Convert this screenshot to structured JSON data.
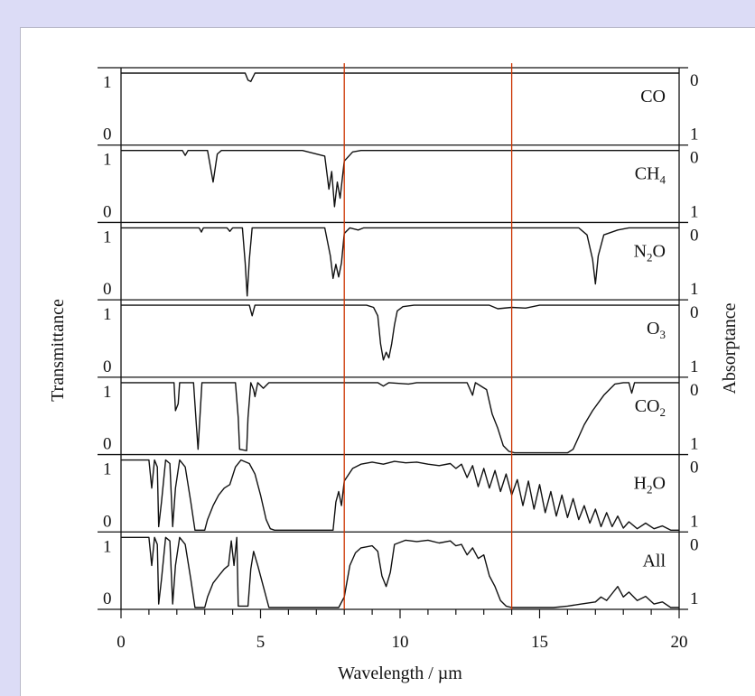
{
  "chart_data": {
    "type": "line",
    "title": "",
    "xlabel": "Wavelength / µm",
    "ylabel_left": "Transmittance",
    "ylabel_right": "Absorptance",
    "xlim": [
      0,
      20
    ],
    "x_ticks": [
      "0",
      "5",
      "10",
      "15",
      "20"
    ],
    "left_panel_ticks": [
      "1",
      "0"
    ],
    "right_panel_ticks": [
      "0",
      "1"
    ],
    "window_markers_um": [
      8,
      14
    ],
    "window_marker_color": "#cc3300",
    "series": [
      {
        "name": "CO",
        "label_main": "CO",
        "label_sub": "",
        "points": [
          [
            0,
            1
          ],
          [
            4.45,
            1
          ],
          [
            4.55,
            0.9
          ],
          [
            4.65,
            0.88
          ],
          [
            4.8,
            1
          ],
          [
            20,
            1
          ]
        ]
      },
      {
        "name": "CH4",
        "label_main": "CH",
        "label_sub": "4",
        "points": [
          [
            0,
            1
          ],
          [
            2.2,
            1
          ],
          [
            2.3,
            0.93
          ],
          [
            2.4,
            1
          ],
          [
            3.1,
            1
          ],
          [
            3.3,
            0.55
          ],
          [
            3.45,
            0.95
          ],
          [
            3.6,
            1
          ],
          [
            6.5,
            1
          ],
          [
            7.3,
            0.92
          ],
          [
            7.45,
            0.45
          ],
          [
            7.55,
            0.7
          ],
          [
            7.65,
            0.2
          ],
          [
            7.75,
            0.55
          ],
          [
            7.85,
            0.32
          ],
          [
            8.0,
            0.85
          ],
          [
            8.3,
            0.98
          ],
          [
            8.6,
            1
          ],
          [
            20,
            1
          ]
        ]
      },
      {
        "name": "N2O",
        "label_main": "N",
        "label_sub": "2",
        "label_tail": "O",
        "points": [
          [
            0,
            1
          ],
          [
            2.8,
            1
          ],
          [
            2.88,
            0.94
          ],
          [
            2.95,
            1
          ],
          [
            3.8,
            1
          ],
          [
            3.9,
            0.95
          ],
          [
            4.0,
            1
          ],
          [
            4.35,
            1
          ],
          [
            4.45,
            0.5
          ],
          [
            4.52,
            0.03
          ],
          [
            4.6,
            0.55
          ],
          [
            4.7,
            1
          ],
          [
            7.3,
            1
          ],
          [
            7.5,
            0.6
          ],
          [
            7.6,
            0.28
          ],
          [
            7.7,
            0.48
          ],
          [
            7.8,
            0.3
          ],
          [
            7.9,
            0.5
          ],
          [
            8.0,
            0.92
          ],
          [
            8.2,
            1
          ],
          [
            8.5,
            0.97
          ],
          [
            8.7,
            1
          ],
          [
            16.4,
            1
          ],
          [
            16.7,
            0.9
          ],
          [
            16.9,
            0.55
          ],
          [
            17.0,
            0.2
          ],
          [
            17.1,
            0.6
          ],
          [
            17.3,
            0.9
          ],
          [
            17.8,
            0.97
          ],
          [
            18.2,
            1
          ],
          [
            20,
            1
          ]
        ]
      },
      {
        "name": "O3",
        "label_main": "O",
        "label_sub": "3",
        "points": [
          [
            0,
            1
          ],
          [
            4.6,
            1
          ],
          [
            4.7,
            0.85
          ],
          [
            4.8,
            1
          ],
          [
            8.8,
            1
          ],
          [
            9.05,
            0.97
          ],
          [
            9.2,
            0.85
          ],
          [
            9.3,
            0.45
          ],
          [
            9.4,
            0.22
          ],
          [
            9.5,
            0.33
          ],
          [
            9.6,
            0.25
          ],
          [
            9.7,
            0.45
          ],
          [
            9.8,
            0.72
          ],
          [
            9.9,
            0.92
          ],
          [
            10.1,
            0.98
          ],
          [
            10.5,
            1
          ],
          [
            13.2,
            1
          ],
          [
            13.5,
            0.95
          ],
          [
            14,
            0.97
          ],
          [
            14.5,
            0.96
          ],
          [
            15,
            1
          ],
          [
            20,
            1
          ]
        ]
      },
      {
        "name": "CO2",
        "label_main": "CO",
        "label_sub": "2",
        "points": [
          [
            0,
            1
          ],
          [
            1.9,
            1
          ],
          [
            1.95,
            0.6
          ],
          [
            2.05,
            0.7
          ],
          [
            2.1,
            1
          ],
          [
            2.6,
            1
          ],
          [
            2.7,
            0.4
          ],
          [
            2.76,
            0.05
          ],
          [
            2.82,
            0.45
          ],
          [
            2.9,
            1
          ],
          [
            4.1,
            1
          ],
          [
            4.2,
            0.5
          ],
          [
            4.25,
            0.05
          ],
          [
            4.5,
            0.03
          ],
          [
            4.55,
            0.5
          ],
          [
            4.65,
            1
          ],
          [
            4.75,
            0.9
          ],
          [
            4.8,
            0.8
          ],
          [
            4.9,
            1
          ],
          [
            5.1,
            0.92
          ],
          [
            5.3,
            1
          ],
          [
            9.2,
            1
          ],
          [
            9.4,
            0.95
          ],
          [
            9.6,
            1
          ],
          [
            10.3,
            0.98
          ],
          [
            10.6,
            1
          ],
          [
            12.4,
            1
          ],
          [
            12.6,
            0.82
          ],
          [
            12.7,
            1
          ],
          [
            13.1,
            0.9
          ],
          [
            13.3,
            0.55
          ],
          [
            13.5,
            0.35
          ],
          [
            13.7,
            0.1
          ],
          [
            13.9,
            0.02
          ],
          [
            14.1,
            0
          ],
          [
            16,
            0
          ],
          [
            16.2,
            0.05
          ],
          [
            16.6,
            0.4
          ],
          [
            16.9,
            0.6
          ],
          [
            17.3,
            0.82
          ],
          [
            17.7,
            0.98
          ],
          [
            18.0,
            1
          ],
          [
            18.2,
            1
          ],
          [
            18.3,
            0.85
          ],
          [
            18.4,
            1
          ],
          [
            20,
            1
          ]
        ]
      },
      {
        "name": "H2O",
        "label_main": "H",
        "label_sub": "2",
        "label_tail": "O",
        "points": [
          [
            0,
            1
          ],
          [
            1.0,
            1
          ],
          [
            1.1,
            0.6
          ],
          [
            1.2,
            1
          ],
          [
            1.3,
            0.9
          ],
          [
            1.35,
            0.05
          ],
          [
            1.45,
            0.4
          ],
          [
            1.6,
            1
          ],
          [
            1.75,
            0.95
          ],
          [
            1.85,
            0.05
          ],
          [
            1.95,
            0.6
          ],
          [
            2.1,
            1
          ],
          [
            2.3,
            0.9
          ],
          [
            2.5,
            0.4
          ],
          [
            2.65,
            0
          ],
          [
            3.0,
            0
          ],
          [
            3.1,
            0.15
          ],
          [
            3.3,
            0.35
          ],
          [
            3.5,
            0.5
          ],
          [
            3.7,
            0.6
          ],
          [
            3.9,
            0.65
          ],
          [
            4.1,
            0.9
          ],
          [
            4.3,
            1
          ],
          [
            4.6,
            0.95
          ],
          [
            4.8,
            0.8
          ],
          [
            5.0,
            0.5
          ],
          [
            5.2,
            0.15
          ],
          [
            5.35,
            0.02
          ],
          [
            5.5,
            0
          ],
          [
            7.6,
            0
          ],
          [
            7.7,
            0.4
          ],
          [
            7.8,
            0.55
          ],
          [
            7.9,
            0.35
          ],
          [
            8.0,
            0.7
          ],
          [
            8.3,
            0.88
          ],
          [
            8.6,
            0.94
          ],
          [
            9,
            0.97
          ],
          [
            9.4,
            0.94
          ],
          [
            9.8,
            0.98
          ],
          [
            10.2,
            0.96
          ],
          [
            10.6,
            0.97
          ],
          [
            11,
            0.94
          ],
          [
            11.4,
            0.92
          ],
          [
            11.8,
            0.95
          ],
          [
            12.0,
            0.88
          ],
          [
            12.2,
            0.94
          ],
          [
            12.4,
            0.75
          ],
          [
            12.6,
            0.92
          ],
          [
            12.8,
            0.62
          ],
          [
            13.0,
            0.88
          ],
          [
            13.2,
            0.6
          ],
          [
            13.4,
            0.85
          ],
          [
            13.6,
            0.55
          ],
          [
            13.8,
            0.8
          ],
          [
            14.0,
            0.5
          ],
          [
            14.2,
            0.72
          ],
          [
            14.4,
            0.35
          ],
          [
            14.6,
            0.7
          ],
          [
            14.8,
            0.3
          ],
          [
            15.0,
            0.65
          ],
          [
            15.2,
            0.25
          ],
          [
            15.4,
            0.55
          ],
          [
            15.6,
            0.2
          ],
          [
            15.8,
            0.5
          ],
          [
            16.0,
            0.18
          ],
          [
            16.2,
            0.45
          ],
          [
            16.4,
            0.15
          ],
          [
            16.6,
            0.35
          ],
          [
            16.8,
            0.1
          ],
          [
            17.0,
            0.3
          ],
          [
            17.2,
            0.05
          ],
          [
            17.4,
            0.25
          ],
          [
            17.6,
            0.05
          ],
          [
            17.8,
            0.2
          ],
          [
            18.0,
            0.03
          ],
          [
            18.2,
            0.12
          ],
          [
            18.5,
            0.02
          ],
          [
            18.8,
            0.1
          ],
          [
            19.1,
            0.02
          ],
          [
            19.4,
            0.06
          ],
          [
            19.7,
            0
          ],
          [
            20,
            0
          ]
        ]
      },
      {
        "name": "All",
        "label_main": "All",
        "label_sub": "",
        "points": [
          [
            0,
            1
          ],
          [
            1.0,
            1
          ],
          [
            1.1,
            0.6
          ],
          [
            1.2,
            1
          ],
          [
            1.3,
            0.9
          ],
          [
            1.35,
            0.05
          ],
          [
            1.45,
            0.4
          ],
          [
            1.6,
            1
          ],
          [
            1.75,
            0.95
          ],
          [
            1.85,
            0.05
          ],
          [
            1.95,
            0.6
          ],
          [
            2.1,
            1
          ],
          [
            2.3,
            0.9
          ],
          [
            2.5,
            0.4
          ],
          [
            2.65,
            0
          ],
          [
            3.0,
            0
          ],
          [
            3.1,
            0.15
          ],
          [
            3.3,
            0.35
          ],
          [
            3.5,
            0.45
          ],
          [
            3.7,
            0.55
          ],
          [
            3.85,
            0.6
          ],
          [
            3.95,
            0.95
          ],
          [
            4.05,
            0.6
          ],
          [
            4.15,
            1
          ],
          [
            4.2,
            0.02
          ],
          [
            4.55,
            0.02
          ],
          [
            4.65,
            0.55
          ],
          [
            4.75,
            0.8
          ],
          [
            4.9,
            0.6
          ],
          [
            5.1,
            0.3
          ],
          [
            5.3,
            0
          ],
          [
            7.8,
            0
          ],
          [
            8.0,
            0.15
          ],
          [
            8.2,
            0.6
          ],
          [
            8.4,
            0.78
          ],
          [
            8.6,
            0.85
          ],
          [
            9.0,
            0.88
          ],
          [
            9.2,
            0.8
          ],
          [
            9.35,
            0.45
          ],
          [
            9.5,
            0.3
          ],
          [
            9.65,
            0.5
          ],
          [
            9.8,
            0.9
          ],
          [
            10.2,
            0.96
          ],
          [
            10.6,
            0.94
          ],
          [
            11,
            0.96
          ],
          [
            11.4,
            0.92
          ],
          [
            11.8,
            0.95
          ],
          [
            12.0,
            0.88
          ],
          [
            12.2,
            0.9
          ],
          [
            12.4,
            0.75
          ],
          [
            12.6,
            0.85
          ],
          [
            12.8,
            0.7
          ],
          [
            13.0,
            0.75
          ],
          [
            13.2,
            0.45
          ],
          [
            13.4,
            0.3
          ],
          [
            13.6,
            0.1
          ],
          [
            13.8,
            0.02
          ],
          [
            14,
            0
          ],
          [
            15.5,
            0
          ],
          [
            16,
            0.02
          ],
          [
            16.5,
            0.05
          ],
          [
            17,
            0.08
          ],
          [
            17.2,
            0.15
          ],
          [
            17.4,
            0.1
          ],
          [
            17.6,
            0.2
          ],
          [
            17.8,
            0.3
          ],
          [
            18.0,
            0.15
          ],
          [
            18.2,
            0.22
          ],
          [
            18.5,
            0.1
          ],
          [
            18.8,
            0.16
          ],
          [
            19.1,
            0.05
          ],
          [
            19.4,
            0.08
          ],
          [
            19.7,
            0
          ],
          [
            20,
            0
          ]
        ]
      }
    ]
  }
}
